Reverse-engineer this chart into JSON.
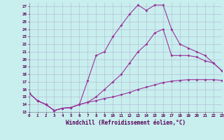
{
  "xlabel": "Windchill (Refroidissement éolien,°C)",
  "background_color": "#c8eeee",
  "grid_color": "#b0b8d0",
  "line_color": "#993399",
  "x_ticks": [
    0,
    1,
    2,
    3,
    4,
    5,
    6,
    7,
    8,
    9,
    10,
    11,
    12,
    13,
    14,
    15,
    16,
    17,
    18,
    19,
    20,
    21,
    22,
    23
  ],
  "y_ticks": [
    13,
    14,
    15,
    16,
    17,
    18,
    19,
    20,
    21,
    22,
    23,
    24,
    25,
    26,
    27
  ],
  "ylim": [
    13,
    27.5
  ],
  "xlim": [
    0,
    23
  ],
  "line1_x": [
    0,
    1,
    2,
    3,
    4,
    5,
    6,
    7,
    8,
    9,
    10,
    11,
    12,
    13,
    14,
    15,
    16,
    17,
    18,
    19,
    20,
    21,
    22,
    23
  ],
  "line1_y": [
    15.5,
    14.5,
    14.0,
    13.2,
    13.5,
    13.6,
    14.0,
    14.3,
    14.5,
    14.8,
    15.0,
    15.3,
    15.6,
    16.0,
    16.3,
    16.6,
    16.9,
    17.1,
    17.2,
    17.3,
    17.3,
    17.3,
    17.3,
    17.2
  ],
  "line2_x": [
    0,
    1,
    2,
    3,
    4,
    5,
    6,
    7,
    8,
    9,
    10,
    11,
    12,
    13,
    14,
    15,
    16,
    17,
    18,
    19,
    20,
    21,
    22,
    23
  ],
  "line2_y": [
    15.5,
    14.5,
    14.0,
    13.2,
    13.5,
    13.6,
    14.0,
    17.2,
    20.5,
    21.0,
    23.0,
    24.5,
    26.0,
    27.2,
    26.5,
    27.2,
    27.2,
    24.0,
    22.0,
    21.5,
    21.0,
    20.5,
    19.5,
    18.5
  ],
  "line3_x": [
    0,
    1,
    2,
    3,
    4,
    5,
    6,
    7,
    8,
    9,
    10,
    11,
    12,
    13,
    14,
    15,
    16,
    17,
    18,
    19,
    20,
    21,
    22,
    23
  ],
  "line3_y": [
    15.5,
    14.5,
    14.0,
    13.2,
    13.5,
    13.6,
    14.0,
    14.3,
    15.0,
    16.0,
    17.0,
    18.0,
    19.5,
    21.0,
    22.0,
    23.5,
    24.0,
    20.5,
    20.5,
    20.5,
    20.3,
    19.8,
    19.5,
    18.5
  ]
}
